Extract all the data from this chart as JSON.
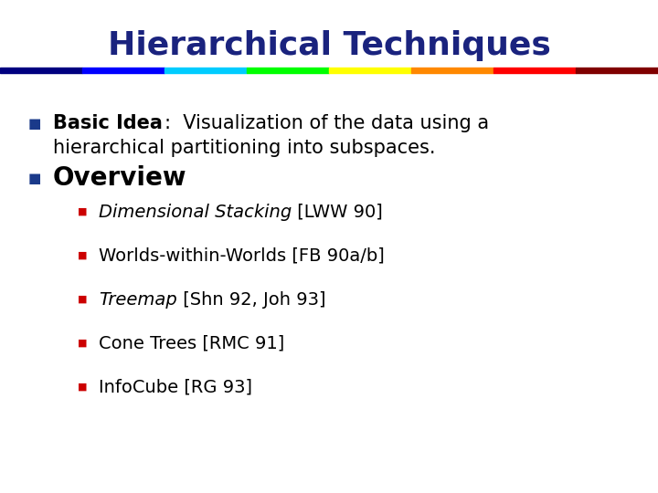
{
  "title": "Hierarchical Techniques",
  "title_color": "#1a237e",
  "title_fontsize": 26,
  "bg_color": "#ffffff",
  "bullet1_color": "#1a3a8a",
  "bullet2_color": "#cc0000",
  "rainbow_colors": [
    "#000080",
    "#0000ff",
    "#00ccff",
    "#00ff00",
    "#ffff00",
    "#ff8800",
    "#ff0000",
    "#800000"
  ],
  "level1_bold1": "Basic Idea",
  "level1_rest1a": ":  Visualization of the data using a",
  "level1_rest1b": "hierarchical partitioning into subspaces.",
  "level1_bold2": "Overview",
  "level2_items": [
    {
      "italic_part": "Dimensional Stacking",
      "normal_part": " [LWW 90]"
    },
    {
      "italic_part": null,
      "normal_part": "Worlds-within-Worlds [FB 90a/b]"
    },
    {
      "italic_part": "Treemap",
      "normal_part": " [Shn 92, Joh 93]"
    },
    {
      "italic_part": null,
      "normal_part": "Cone Trees [RMC 91]"
    },
    {
      "italic_part": null,
      "normal_part": "InfoCube [RG 93]"
    }
  ],
  "main_fontsize": 15,
  "sub_fontsize": 14,
  "overview_fontsize": 20
}
